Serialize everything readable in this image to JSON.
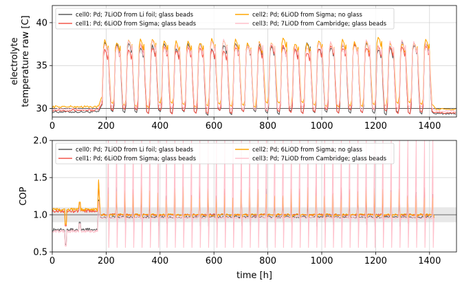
{
  "chart_data": [
    {
      "type": "line",
      "title": "",
      "xlabel": "",
      "ylabel_lines": [
        "electrolyte",
        "temperature raw [C]"
      ],
      "xlim": [
        0,
        1500
      ],
      "ylim": [
        29,
        42
      ],
      "xticks": [
        0,
        200,
        400,
        600,
        800,
        1000,
        1200,
        1400
      ],
      "yticks": [
        30,
        35,
        40
      ],
      "grid": true,
      "legend_position": "top-left",
      "reference_line": 30,
      "series": [
        {
          "name": "cell0: Pd; 7LiOD from Li foil; glass beads",
          "color": "#5a5a5a",
          "pre": [
            0,
            175,
            29.6
          ],
          "cycle": [
            185,
            1420,
            29.5,
            37.2,
            28
          ],
          "post": [
            1425,
            1500,
            29.4
          ]
        },
        {
          "name": "cell1: Pd; 6LiOD from Sigma; glass beads",
          "color": "#f4574b",
          "pre": [
            0,
            175,
            29.8
          ],
          "cycle": [
            185,
            1420,
            29.6,
            37.0,
            28
          ],
          "post": [
            1425,
            1500,
            29.5
          ]
        },
        {
          "name": "cell2: Pd; 6LiOD from Sigma; no glass",
          "color": "#ffa500",
          "pre": [
            0,
            175,
            30.2
          ],
          "cycle": [
            185,
            1420,
            30.4,
            37.8,
            28
          ],
          "post": [
            1425,
            1500,
            29.9
          ]
        },
        {
          "name": "cell3: Pd; 7LiOD from Cambridge; glass beads",
          "color": "#ffc0cb",
          "pre": [
            0,
            175,
            29.9
          ],
          "cycle": [
            185,
            1420,
            30.0,
            37.4,
            28
          ],
          "post": [
            1425,
            1500,
            29.7
          ]
        }
      ]
    },
    {
      "type": "line",
      "title": "",
      "xlabel": "time [h]",
      "ylabel": "COP",
      "xlim": [
        0,
        1500
      ],
      "ylim": [
        0.5,
        2.0
      ],
      "xticks": [
        0,
        200,
        400,
        600,
        800,
        1000,
        1200,
        1400
      ],
      "yticks": [
        0.5,
        1.0,
        1.5,
        2.0
      ],
      "grid": true,
      "legend_position": "top-left",
      "reference_line": 1.0,
      "reference_band": [
        0.9,
        1.1
      ],
      "series": [
        {
          "name": "cell0: Pd; 7LiOD from Li foil; glass beads",
          "color": "#5a5a5a",
          "pre_level": 0.8,
          "level": 0.97
        },
        {
          "name": "cell1: Pd; 6LiOD from Sigma; glass beads",
          "color": "#f4574b",
          "pre_level": 1.05,
          "level": 1.0
        },
        {
          "name": "cell2: Pd; 6LiOD from Sigma; no glass",
          "color": "#ffa500",
          "pre_level": 1.07,
          "level": 1.0
        },
        {
          "name": "cell3: Pd; 7LiOD from Cambridge; glass beads",
          "color": "#ffc0cb",
          "pre_level": 0.78,
          "level": 0.96
        }
      ]
    }
  ]
}
